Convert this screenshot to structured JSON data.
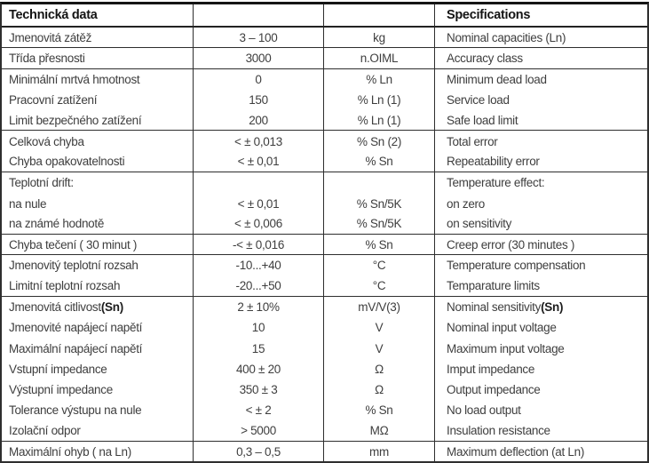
{
  "table": {
    "header": {
      "cz": "Technická data",
      "en": "Specifications"
    },
    "rows": [
      {
        "cz": "Jmenovitá zátěž",
        "value": "3 – 100",
        "unit": "kg",
        "en": "Nominal capacities (Ln)",
        "group_end": true
      },
      {
        "cz": "Třída přesnosti",
        "value": "3000",
        "unit": "n.OIML",
        "en": "Accuracy class",
        "group_end": true
      },
      {
        "cz": "Minimální mrtvá hmotnost",
        "value": "0",
        "unit": "% Ln",
        "en": "Minimum dead load",
        "group_end": false
      },
      {
        "cz": "Pracovní zatížení",
        "value": "150",
        "unit": "% Ln (1)",
        "en": "Service load",
        "group_end": false
      },
      {
        "cz": "Limit bezpečného zatížení",
        "value": "200",
        "unit": "% Ln (1)",
        "en": "Safe load limit",
        "group_end": true
      },
      {
        "cz": "Celková chyba",
        "value": "< ± 0,013",
        "unit": "% Sn (2)",
        "en": "Total error",
        "group_end": false
      },
      {
        "cz": "Chyba opakovatelnosti",
        "value": "< ± 0,01",
        "unit": "% Sn",
        "en": "Repeatability error",
        "group_end": true
      },
      {
        "cz": "Teplotní drift:",
        "value": "",
        "unit": "",
        "en": "Temperature effect:",
        "group_end": false
      },
      {
        "cz": "na nule",
        "value": "< ± 0,01",
        "unit": "% Sn/5K",
        "en": "on zero",
        "group_end": false
      },
      {
        "cz": "na známé hodnotě",
        "value": "< ± 0,006",
        "unit": "% Sn/5K",
        "en": "on sensitivity",
        "group_end": true
      },
      {
        "cz": "Chyba tečení ( 30 minut )",
        "value": "-< ± 0,016",
        "unit": "% Sn",
        "en": "Creep error (30 minutes )",
        "group_end": true
      },
      {
        "cz": "Jmenovitý teplotní rozsah",
        "value": "-10...+40",
        "unit": "°C",
        "en": "Temperature compensation",
        "group_end": false
      },
      {
        "cz": "Limitní teplotní rozsah",
        "value": "-20...+50",
        "unit": "°C",
        "en": "Temparature limits",
        "group_end": true
      },
      {
        "cz": "Jmenovitá citlivost ",
        "cz_bold": "(Sn)",
        "value": "2 ± 10%",
        "unit": "mV/V(3)",
        "en": "Nominal sensitivity ",
        "en_bold": "(Sn)",
        "group_end": false
      },
      {
        "cz": "Jmenovité napájecí napětí",
        "value": "10",
        "unit": "V",
        "en": "Nominal input voltage",
        "group_end": false
      },
      {
        "cz": "Maximální napájecí napětí",
        "value": "15",
        "unit": "V",
        "en": "Maximum input voltage",
        "group_end": false
      },
      {
        "cz": "Vstupní impedance",
        "value": "400 ± 20",
        "unit": "Ω",
        "en": "Imput impedance",
        "group_end": false
      },
      {
        "cz": "Výstupní impedance",
        "value": "350 ± 3",
        "unit": "Ω",
        "en": "Output impedance",
        "group_end": false
      },
      {
        "cz": "Tolerance výstupu na nule",
        "value": "< ± 2",
        "unit": "% Sn",
        "en": "No load output",
        "group_end": false
      },
      {
        "cz": "Izolační odpor",
        "value": "> 5000",
        "unit": "MΩ",
        "en": "Insulation resistance",
        "group_end": true
      },
      {
        "cz": "Maximální ohyb ( na Ln)",
        "value": "0,3 – 0,5",
        "unit": "mm",
        "en": "Maximum deflection (at Ln)",
        "group_end": true
      }
    ]
  }
}
